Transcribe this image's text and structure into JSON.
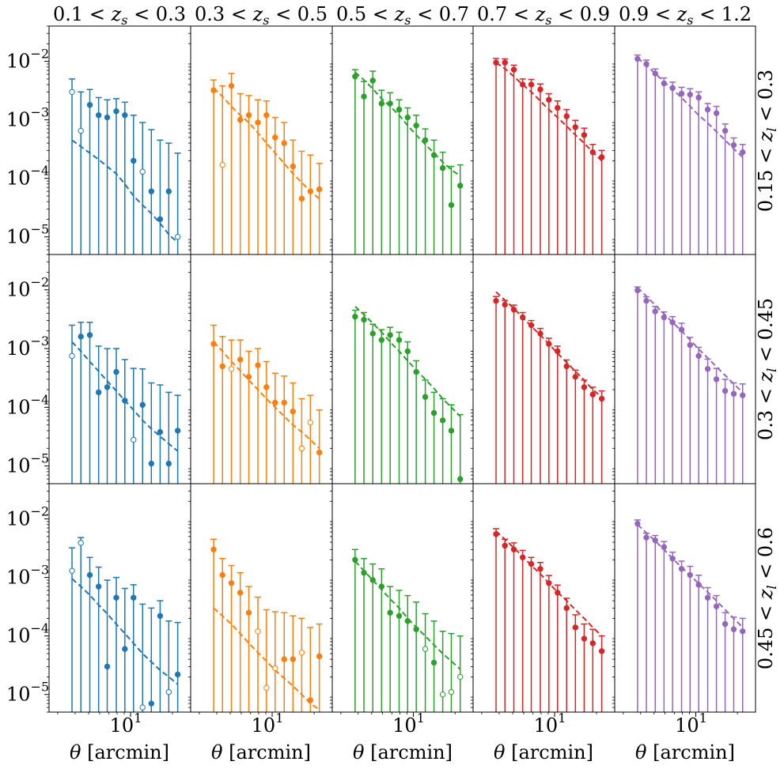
{
  "column_titles": [
    "0.1 < z_s < 0.3",
    "0.3 < z_s < 0.5",
    "0.5 < z_s < 0.7",
    "0.7 < z_s < 0.9",
    "0.9 < z_s < 1.2"
  ],
  "row_labels": [
    "0.15 < z_l < 0.3",
    "0.3 < z_l < 0.45",
    "0.45 < z_l < 0.6"
  ],
  "x_axis_label": "θ [arcmin]",
  "x_tick_label": "10",
  "x_tick_exponent": "1",
  "y_tick_labels": [
    {
      "base": "10",
      "exp": "−2"
    },
    {
      "base": "10",
      "exp": "−3"
    },
    {
      "base": "10",
      "exp": "−4"
    },
    {
      "base": "10",
      "exp": "−5"
    }
  ],
  "colors": [
    "#1f77b4",
    "#ff7f0e",
    "#2ca02c",
    "#d62728",
    "#9467bd"
  ],
  "chart_data": {
    "type": "scatter",
    "layout": "3x5 panel grid, log-log axes, shared axes",
    "x_scale": "log",
    "y_scale": "log",
    "xlim": [
      2.6,
      27
    ],
    "ylim": [
      5e-06,
      0.04
    ],
    "x_ticks": [
      10
    ],
    "y_ticks": [
      0.01,
      0.001,
      0.0001,
      1e-05
    ],
    "x": [
      3.8,
      4.4,
      5.1,
      5.9,
      6.8,
      7.9,
      9.1,
      10.5,
      12.2,
      14.1,
      16.3,
      18.8,
      21.8
    ],
    "markers": "filled circle = positive, open circle = negative (absolute value plotted)",
    "panels": [
      [
        {
          "y": [
            0.003,
            0.00065,
            0.0018,
            0.0012,
            0.0011,
            0.0014,
            0.0012,
            0.0002,
            0.00013,
            6e-05,
            2e-05,
            6e-05,
            1e-05
          ],
          "open": [
            true,
            true,
            false,
            false,
            false,
            false,
            false,
            false,
            true,
            false,
            false,
            false,
            true
          ],
          "err_up": [
            0.005,
            0.003,
            0.0033,
            0.0024,
            0.0022,
            0.0023,
            0.002,
            0.0012,
            0.0009,
            0.00068,
            0.00045,
            0.0004,
            0.00027
          ],
          "model": [
            0.00045,
            0.00035,
            0.00027,
            0.00021,
            0.00016,
            0.00012,
            8e-05,
            5e-05,
            3.5e-05,
            2.5e-05,
            1.7e-05,
            1.1e-05,
            8e-06
          ]
        },
        {
          "y": [
            0.0032,
            0.00017,
            0.0038,
            0.001,
            0.0012,
            0.0009,
            0.0012,
            0.0005,
            0.0004,
            0.00016,
            4.5e-05,
            6e-05,
            6.5e-05
          ],
          "open": [
            false,
            true,
            false,
            false,
            false,
            false,
            false,
            false,
            false,
            false,
            false,
            false,
            false
          ],
          "err_up": [
            0.0048,
            0.0038,
            0.0062,
            0.0028,
            0.0026,
            0.0022,
            0.0021,
            0.0011,
            0.0009,
            0.00045,
            0.00029,
            0.00025,
            0.00018
          ],
          "model": [
            0.0035,
            0.0025,
            0.0017,
            0.0012,
            0.0009,
            0.0006,
            0.0004,
            0.00027,
            0.00018,
            0.00012,
            8.5e-05,
            6e-05,
            4.5e-05
          ]
        },
        {
          "y": [
            0.0055,
            0.0025,
            0.0047,
            0.0019,
            0.0019,
            0.0015,
            0.0011,
            0.0008,
            0.00045,
            0.00025,
            0.00015,
            3.5e-05,
            7.5e-05
          ],
          "open": [
            false,
            false,
            false,
            false,
            false,
            false,
            false,
            false,
            false,
            false,
            false,
            false,
            false
          ],
          "err_up": [
            0.0072,
            0.0045,
            0.0068,
            0.0032,
            0.0029,
            0.0022,
            0.0016,
            0.0012,
            0.0007,
            0.00045,
            0.00028,
            0.00016,
            0.00017
          ],
          "model": [
            0.0065,
            0.0048,
            0.0034,
            0.0023,
            0.0017,
            0.0012,
            0.0008,
            0.00055,
            0.00038,
            0.00027,
            0.00019,
            0.00014,
            0.00011
          ]
        },
        {
          "y": [
            0.0095,
            0.0095,
            0.0072,
            0.004,
            0.004,
            0.0033,
            0.0022,
            0.0016,
            0.00115,
            0.00075,
            0.00055,
            0.00028,
            0.00023
          ],
          "open": [
            false,
            false,
            false,
            false,
            false,
            false,
            false,
            false,
            false,
            false,
            false,
            false,
            false
          ],
          "err_up": [
            0.0112,
            0.011,
            0.0086,
            0.005,
            0.0049,
            0.0041,
            0.0028,
            0.0021,
            0.0015,
            0.00098,
            0.00072,
            0.00038,
            0.0003
          ],
          "model": [
            0.0095,
            0.0075,
            0.0055,
            0.004,
            0.003,
            0.0021,
            0.0015,
            0.0011,
            0.00078,
            0.00055,
            0.0004,
            0.00028,
            0.0002
          ]
        },
        {
          "y": [
            0.011,
            0.009,
            0.0062,
            0.0042,
            0.0035,
            0.0028,
            0.0027,
            0.0024,
            0.0015,
            0.0013,
            0.00065,
            0.00037,
            0.00028
          ],
          "open": [
            false,
            false,
            false,
            false,
            false,
            false,
            false,
            false,
            false,
            false,
            false,
            false,
            false
          ],
          "err_up": [
            0.0128,
            0.0105,
            0.0074,
            0.0052,
            0.0044,
            0.0036,
            0.0034,
            0.003,
            0.0019,
            0.0017,
            0.00085,
            0.00049,
            0.00038
          ],
          "model": [
            0.0115,
            0.0085,
            0.0062,
            0.0045,
            0.0033,
            0.0024,
            0.0017,
            0.0012,
            0.00088,
            0.00063,
            0.00045,
            0.00032,
            0.00023
          ]
        }
      ],
      [
        {
          "y": [
            0.00075,
            0.0016,
            0.0017,
            0.00018,
            0.00022,
            0.0004,
            0.00013,
            2.8e-05,
            0.00011,
            1.1e-05,
            3.8e-05,
            1.1e-05,
            4e-05
          ],
          "open": [
            true,
            false,
            false,
            false,
            false,
            false,
            false,
            true,
            false,
            false,
            false,
            false,
            false
          ],
          "err_up": [
            0.0025,
            0.0028,
            0.0028,
            0.0011,
            0.001,
            0.001,
            0.00065,
            0.00046,
            0.00045,
            0.00026,
            0.00024,
            0.00018,
            0.00016
          ],
          "model": [
            0.0013,
            0.0009,
            0.0006,
            0.00041,
            0.00028,
            0.00019,
            0.00013,
            9e-05,
            6e-05,
            4.3e-05,
            3.2e-05,
            2.4e-05,
            1.8e-05
          ]
        },
        {
          "y": [
            0.0012,
            0.0005,
            0.00045,
            0.00065,
            0.00033,
            0.00052,
            0.00022,
            0.00012,
            0.00012,
            8.5e-05,
            2e-05,
            5.5e-05,
            1.7e-05
          ],
          "open": [
            false,
            false,
            true,
            false,
            false,
            false,
            false,
            false,
            false,
            false,
            true,
            true,
            false
          ],
          "err_up": [
            0.0025,
            0.0016,
            0.0014,
            0.0014,
            0.0009,
            0.001,
            0.0006,
            0.00038,
            0.00034,
            0.00026,
            0.00014,
            0.00016,
            9e-05
          ],
          "model": [
            0.0013,
            0.0009,
            0.0006,
            0.00042,
            0.00029,
            0.0002,
            0.00014,
            0.0001,
            7e-05,
            5e-05,
            3.8e-05,
            2.8e-05,
            2e-05
          ]
        },
        {
          "y": [
            0.0035,
            0.0031,
            0.0018,
            0.0014,
            0.0017,
            0.0014,
            0.0009,
            0.0004,
            0.00015,
            8e-05,
            6e-05,
            4e-05,
            6e-06
          ],
          "open": [
            false,
            false,
            false,
            false,
            false,
            false,
            false,
            false,
            false,
            false,
            false,
            false,
            false
          ],
          "err_up": [
            0.0045,
            0.0041,
            0.0026,
            0.0021,
            0.0023,
            0.0019,
            0.0013,
            0.00062,
            0.00029,
            0.00018,
            0.00014,
            0.00011,
            7.5e-05
          ],
          "model": [
            0.0052,
            0.0038,
            0.0027,
            0.0019,
            0.0013,
            0.0009,
            0.00062,
            0.00043,
            0.0003,
            0.00021,
            0.00014,
            0.0001,
            7e-05
          ]
        },
        {
          "y": [
            0.0065,
            0.0056,
            0.0046,
            0.0034,
            0.0025,
            0.0018,
            0.0012,
            0.0009,
            0.0005,
            0.00033,
            0.00022,
            0.000165,
            0.00014
          ],
          "open": [
            false,
            false,
            false,
            false,
            false,
            false,
            false,
            false,
            false,
            false,
            false,
            false,
            false
          ],
          "err_up": [
            0.0077,
            0.0066,
            0.0055,
            0.0041,
            0.003,
            0.0022,
            0.0015,
            0.0011,
            0.00064,
            0.00043,
            0.00029,
            0.00022,
            0.00019
          ],
          "model": [
            0.0092,
            0.0067,
            0.0048,
            0.0034,
            0.0024,
            0.0017,
            0.0012,
            0.00083,
            0.00058,
            0.00041,
            0.00029,
            0.0002,
            0.00015
          ]
        },
        {
          "y": [
            0.0098,
            0.0065,
            0.0043,
            0.0034,
            0.0028,
            0.0021,
            0.00115,
            0.00075,
            0.00045,
            0.0003,
            0.00019,
            0.00017,
            0.00016
          ],
          "open": [
            false,
            false,
            false,
            false,
            false,
            false,
            false,
            false,
            false,
            false,
            false,
            false,
            false
          ],
          "err_up": [
            0.0112,
            0.0076,
            0.0052,
            0.0042,
            0.0035,
            0.0027,
            0.00155,
            0.00105,
            0.00066,
            0.00046,
            0.0003,
            0.00026,
            0.00025
          ],
          "model": [
            0.011,
            0.0078,
            0.0055,
            0.0039,
            0.0028,
            0.002,
            0.0014,
            0.00098,
            0.00069,
            0.00049,
            0.00035,
            0.00025,
            0.00018
          ]
        }
      ],
      [
        {
          "y": [
            0.0013,
            0.0039,
            0.0011,
            0.0007,
            3e-05,
            0.00045,
            6e-05,
            0.00045,
            6e-06,
            7e-06,
            0.00022,
            1.1e-05,
            2.2e-05
          ],
          "open": [
            true,
            true,
            false,
            false,
            false,
            false,
            false,
            false,
            true,
            false,
            false,
            true,
            false
          ],
          "err_up": [
            0.0032,
            0.0048,
            0.0022,
            0.0015,
            0.0009,
            0.001,
            0.00065,
            0.00075,
            0.00035,
            0.0003,
            0.0004,
            0.00018,
            0.00017
          ],
          "model": [
            0.00095,
            0.0007,
            0.0005,
            0.00034,
            0.00024,
            0.00016,
            0.00011,
            7.5e-05,
            5e-05,
            3.6e-05,
            2.6e-05,
            2e-05,
            1.5e-05
          ]
        },
        {
          "y": [
            0.003,
            0.0011,
            0.0008,
            0.00055,
            0.00025,
            0.00012,
            1.3e-05,
            2.8e-05,
            4e-05,
            4e-05,
            5.2e-05,
            8e-06,
            4.5e-05
          ],
          "open": [
            false,
            false,
            false,
            false,
            false,
            true,
            true,
            true,
            false,
            false,
            true,
            false,
            false
          ],
          "err_up": [
            0.0045,
            0.0021,
            0.0016,
            0.0012,
            0.0007,
            0.00046,
            0.00028,
            0.00026,
            0.00025,
            0.00022,
            0.0002,
            0.00014,
            0.00016
          ],
          "model": [
            0.0003,
            0.00022,
            0.00016,
            0.00011,
            7.5e-05,
            5.2e-05,
            3.7e-05,
            2.6e-05,
            1.9e-05,
            1.4e-05,
            1e-05,
            7e-06,
            5.5e-06
          ]
        },
        {
          "y": [
            0.002,
            0.0012,
            0.0009,
            0.0007,
            0.00025,
            0.00022,
            0.00018,
            0.00013,
            6e-05,
            3.5e-05,
            1e-05,
            1.1e-05,
            2e-05
          ],
          "open": [
            false,
            false,
            false,
            false,
            false,
            false,
            false,
            false,
            true,
            false,
            true,
            true,
            true
          ],
          "err_up": [
            0.003,
            0.0021,
            0.0017,
            0.0014,
            0.0007,
            0.0006,
            0.00049,
            0.00038,
            0.00024,
            0.00018,
            0.00012,
            0.00011,
            0.0001
          ],
          "model": [
            0.0019,
            0.0013,
            0.0009,
            0.00062,
            0.00043,
            0.0003,
            0.0002,
            0.00014,
            0.0001,
            7e-05,
            5e-05,
            3.7e-05,
            2.7e-05
          ]
        },
        {
          "y": [
            0.0055,
            0.0035,
            0.003,
            0.0022,
            0.0017,
            0.0014,
            0.0008,
            0.00055,
            0.0003,
            0.00014,
            9e-05,
            7.5e-05,
            5.5e-05
          ],
          "open": [
            false,
            false,
            false,
            false,
            false,
            false,
            false,
            false,
            false,
            false,
            false,
            false,
            false
          ],
          "err_up": [
            0.0068,
            0.0045,
            0.0039,
            0.0029,
            0.0022,
            0.0018,
            0.00108,
            0.00074,
            0.00044,
            0.00023,
            0.00016,
            0.00013,
            0.0001
          ],
          "model": [
            0.0062,
            0.0045,
            0.0032,
            0.0023,
            0.0016,
            0.00115,
            0.0008,
            0.00056,
            0.0004,
            0.00028,
            0.0002,
            0.00014,
            0.0001
          ]
        },
        {
          "y": [
            0.0083,
            0.0048,
            0.0043,
            0.0033,
            0.0021,
            0.0014,
            0.0011,
            0.00075,
            0.00045,
            0.00032,
            0.00016,
            0.00013,
            0.00012
          ],
          "open": [
            false,
            false,
            false,
            false,
            false,
            false,
            false,
            false,
            false,
            false,
            false,
            false,
            false
          ],
          "err_up": [
            0.0096,
            0.0057,
            0.0052,
            0.0041,
            0.0027,
            0.0019,
            0.00155,
            0.00109,
            0.00067,
            0.00049,
            0.00025,
            0.00021,
            0.0002
          ],
          "model": [
            0.008,
            0.0058,
            0.0042,
            0.003,
            0.0021,
            0.0015,
            0.0011,
            0.00078,
            0.00056,
            0.0004,
            0.00028,
            0.0002,
            0.00014
          ]
        }
      ]
    ]
  }
}
